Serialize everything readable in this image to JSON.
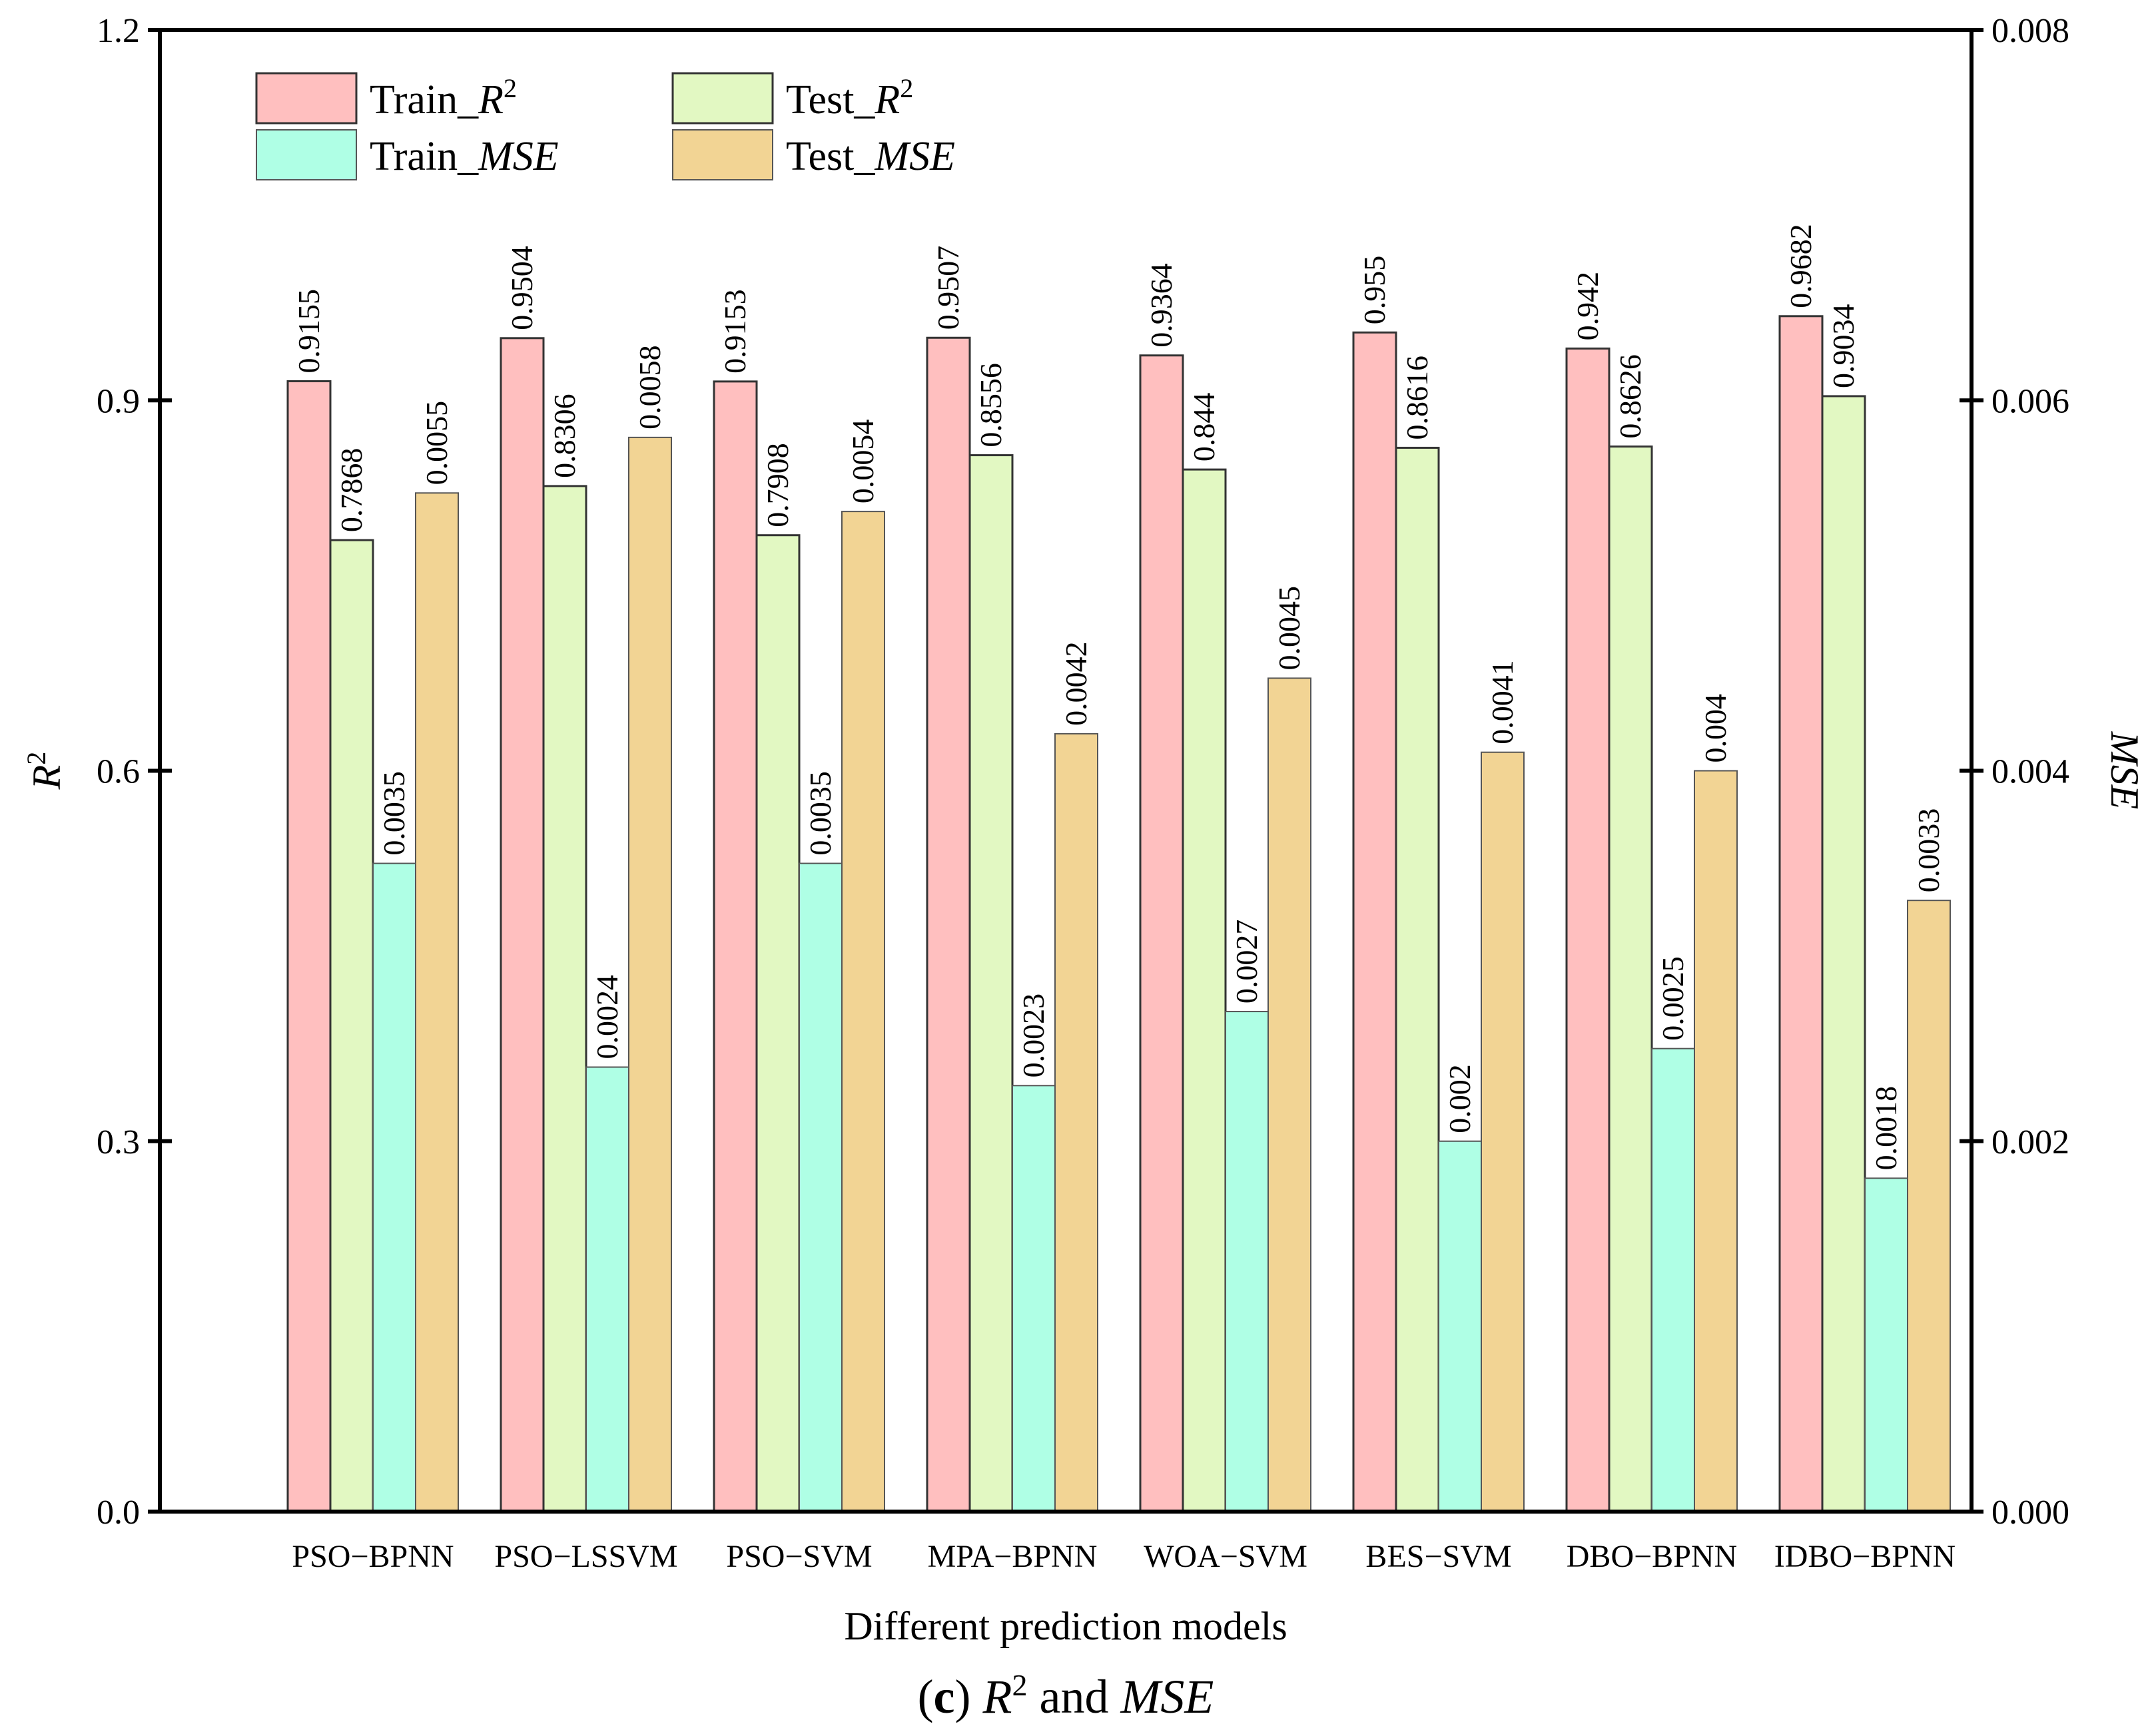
{
  "chart_data": {
    "type": "bar",
    "categories": [
      "PSO−BPNN",
      "PSO−LSSVM",
      "PSO−SVM",
      "MPA−BPNN",
      "WOA−SVM",
      "BES−SVM",
      "DBO−BPNN",
      "IDBO−BPNN"
    ],
    "series": [
      {
        "name": "Train_R2",
        "legend_prefix": "Train_",
        "legend_main": "R",
        "legend_sup": "2",
        "axis": "left",
        "color": "#FFBFBF",
        "values": [
          0.9155,
          0.9504,
          0.9153,
          0.9507,
          0.9364,
          0.955,
          0.942,
          0.9682
        ],
        "labels": [
          "0.9155",
          "0.9504",
          "0.9153",
          "0.9507",
          "0.9364",
          "0.955",
          "0.942",
          "0.9682"
        ]
      },
      {
        "name": "Test_R2",
        "legend_prefix": "Test_",
        "legend_main": "R",
        "legend_sup": "2",
        "axis": "left",
        "color": "#E2F8C2",
        "values": [
          0.7868,
          0.8306,
          0.7908,
          0.8556,
          0.844,
          0.8616,
          0.8626,
          0.9034
        ],
        "labels": [
          "0.7868",
          "0.8306",
          "0.7908",
          "0.8556",
          "0.844",
          "0.8616",
          "0.8626",
          "0.9034"
        ]
      },
      {
        "name": "Train_MSE",
        "legend_prefix": "Train_",
        "legend_main": "MSE",
        "legend_sup": "",
        "axis": "right",
        "color": "#AFFFE5",
        "values": [
          0.0035,
          0.0024,
          0.0035,
          0.0023,
          0.0027,
          0.002,
          0.0025,
          0.0018
        ],
        "labels": [
          "0.0035",
          "0.0024",
          "0.0035",
          "0.0023",
          "0.0027",
          "0.002",
          "0.0025",
          "0.0018"
        ]
      },
      {
        "name": "Test_MSE",
        "legend_prefix": "Test_",
        "legend_main": "MSE",
        "legend_sup": "",
        "axis": "right",
        "color": "#F2D494",
        "values": [
          0.0055,
          0.0058,
          0.0054,
          0.0042,
          0.0045,
          0.0041,
          0.004,
          0.0033
        ],
        "labels": [
          "0.0055",
          "0.0058",
          "0.0054",
          "0.0042",
          "0.0045",
          "0.0041",
          "0.004",
          "0.0033"
        ]
      }
    ],
    "ylim_left": [
      0,
      1.2
    ],
    "ylim_right": [
      0,
      0.008
    ],
    "yticks_left": [
      "0.0",
      "0.3",
      "0.6",
      "0.9",
      "1.2"
    ],
    "yticks_right": [
      "0.000",
      "0.002",
      "0.004",
      "0.006",
      "0.008"
    ],
    "ylabel_left": {
      "main": "R",
      "sup": "2"
    },
    "ylabel_right": "MSE",
    "xlabel": "Different prediction models",
    "caption": {
      "prefix": "(",
      "letter": "c",
      "suffix": ") ",
      "r": "R",
      "sup": "2",
      "mid": " and ",
      "mse": "MSE"
    },
    "legend_position": "top-left",
    "grid": false
  }
}
